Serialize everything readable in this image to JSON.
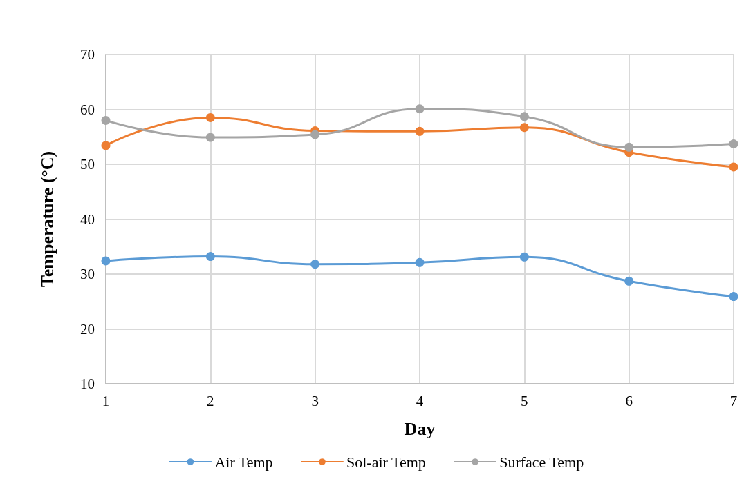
{
  "chart_data": {
    "type": "line",
    "xlabel": "Day",
    "ylabel": "Temperature (°C)",
    "categories": [
      "1",
      "2",
      "3",
      "4",
      "5",
      "6",
      "7"
    ],
    "series": [
      {
        "name": "Air Temp",
        "color": "#5b9bd5",
        "values": [
          32.4,
          33.2,
          31.8,
          32.1,
          33.1,
          28.7,
          25.9
        ]
      },
      {
        "name": "Sol-air Temp",
        "color": "#ed7d31",
        "values": [
          53.4,
          58.5,
          56.1,
          56.0,
          56.7,
          52.2,
          49.5
        ]
      },
      {
        "name": "Surface Temp",
        "color": "#a5a5a5",
        "values": [
          58.0,
          54.9,
          55.4,
          60.1,
          58.7,
          53.1,
          53.7
        ]
      }
    ],
    "ylim": [
      10,
      70
    ],
    "yticks": [
      10,
      20,
      30,
      40,
      50,
      60,
      70
    ],
    "grid": true,
    "legend": "bottom",
    "marker": "circle",
    "line_style": "solid"
  }
}
